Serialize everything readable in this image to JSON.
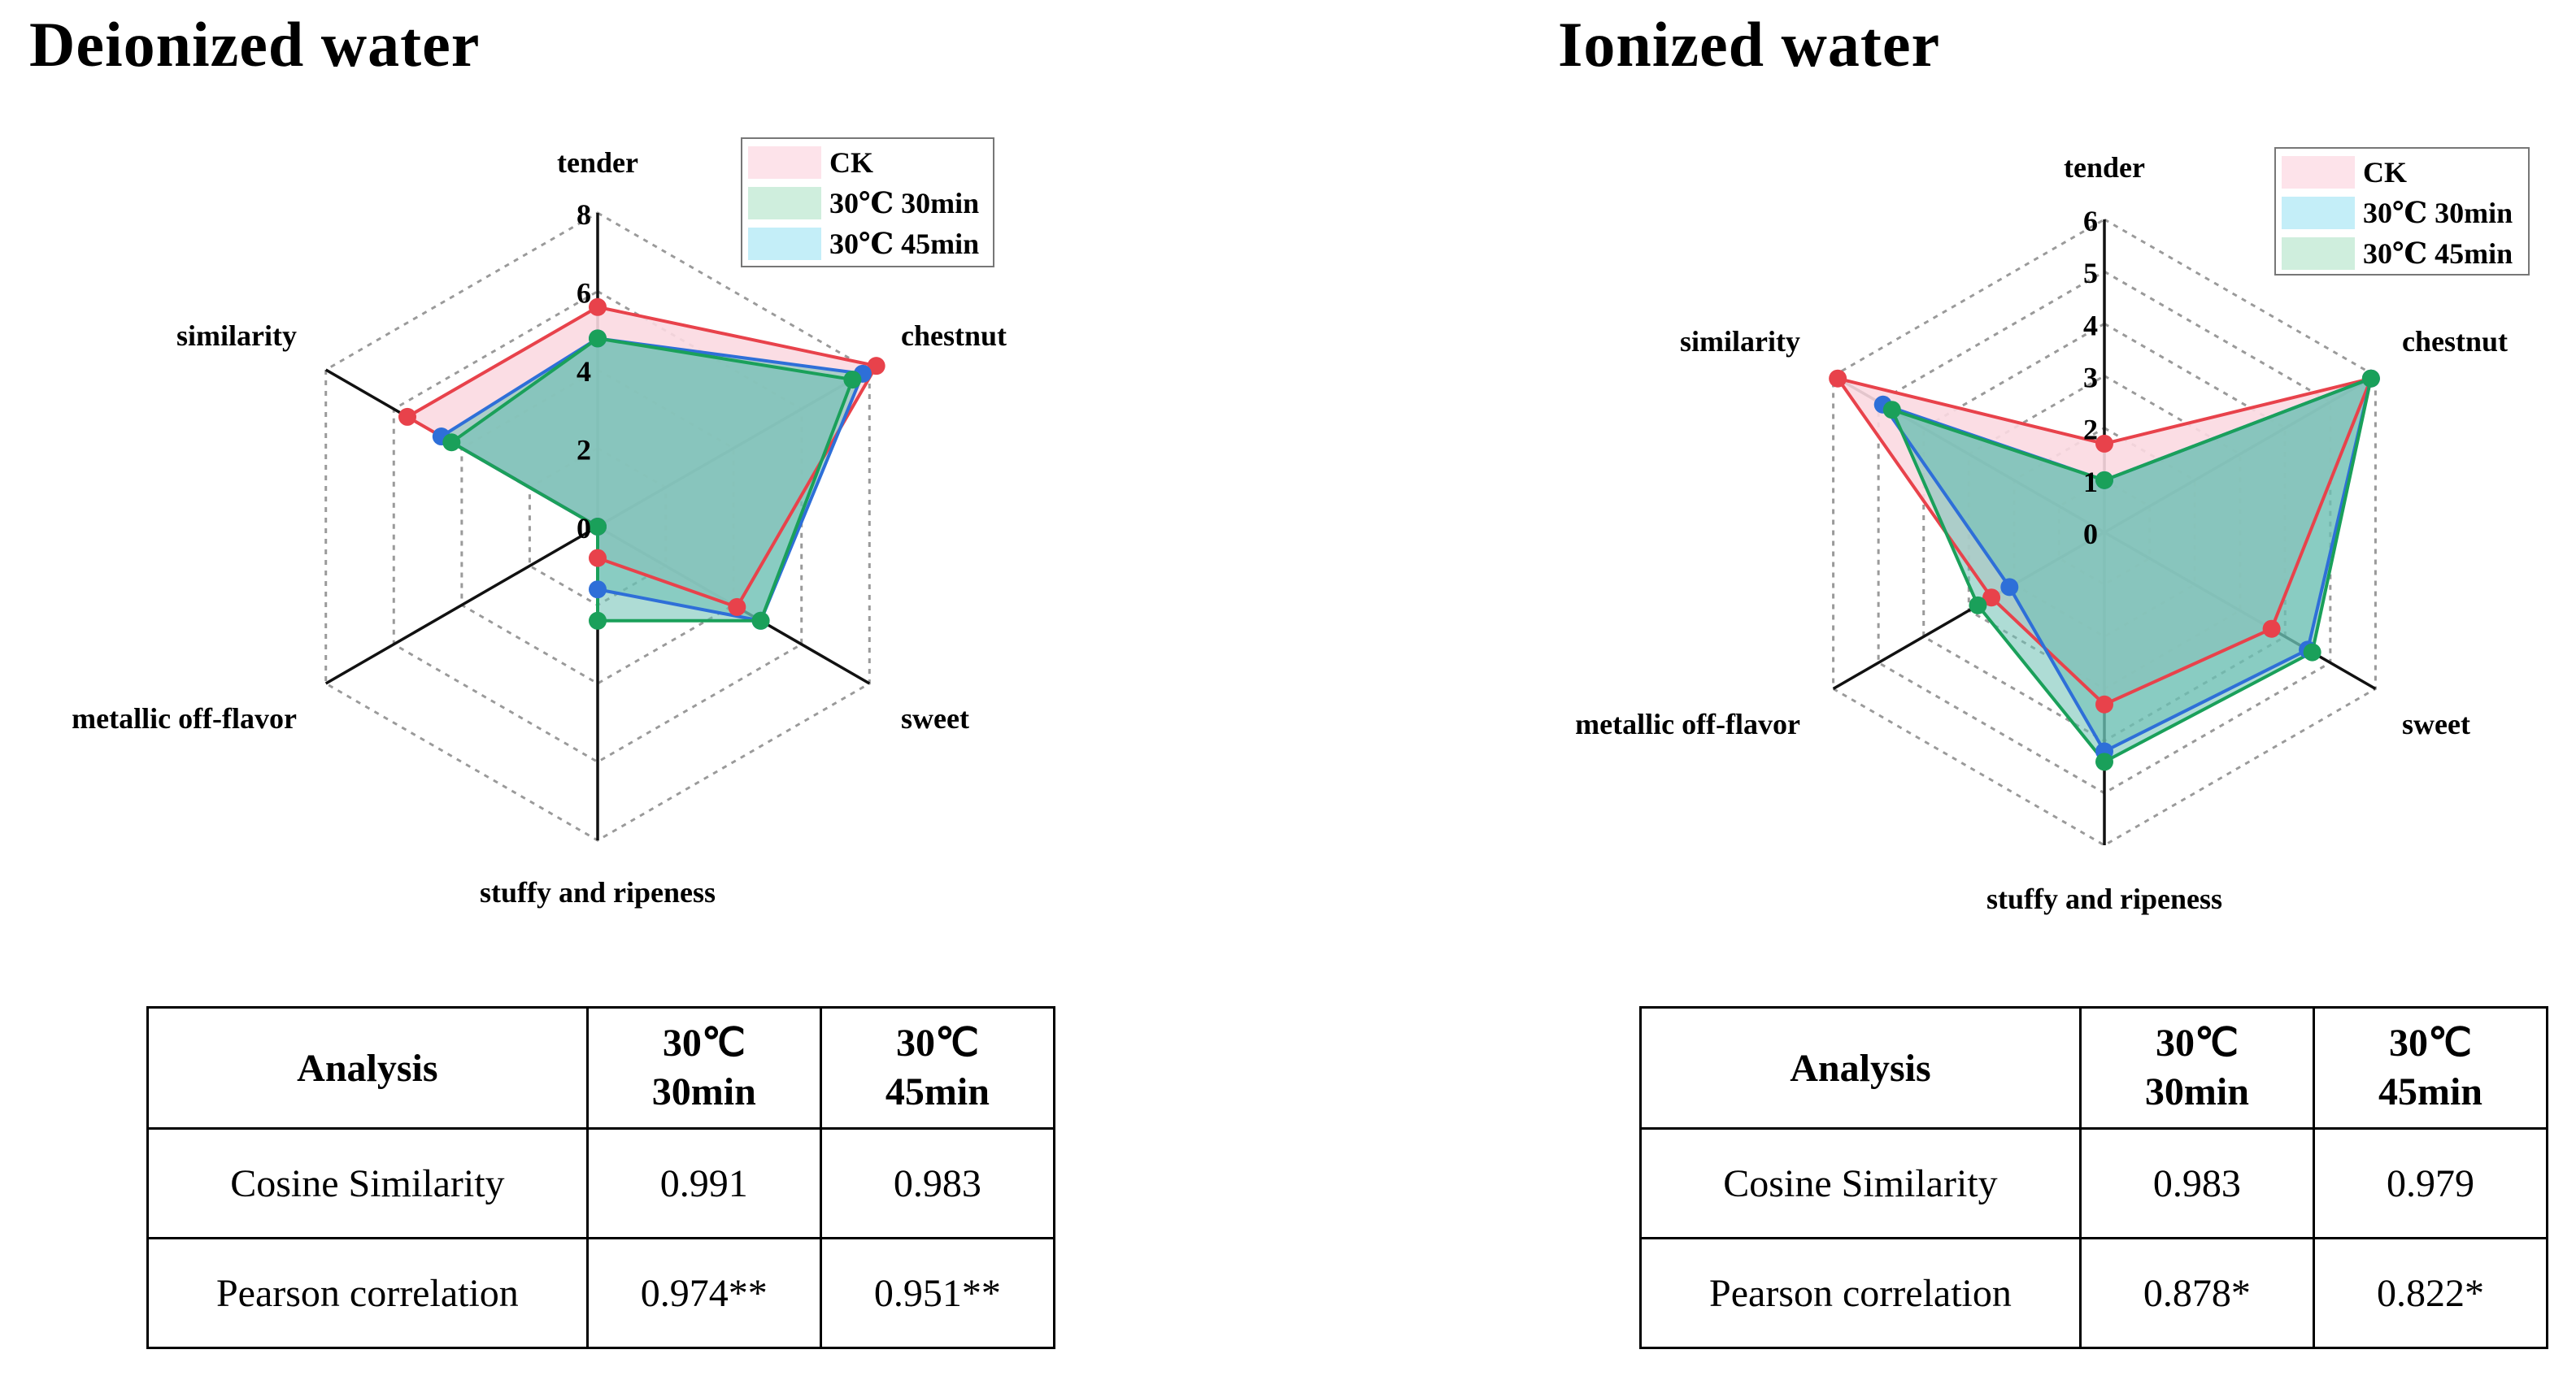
{
  "panels": [
    {
      "title": "Deionized water",
      "table": {
        "headers": [
          "Analysis",
          "30℃",
          "30min",
          "30℃",
          "45min"
        ],
        "rows": [
          [
            "Cosine Similarity",
            "0.991",
            "0.983"
          ],
          [
            "Pearson correlation",
            "0.974**",
            "0.951**"
          ]
        ]
      }
    },
    {
      "title": "Ionized water",
      "table": {
        "headers": [
          "Analysis",
          "30℃",
          "30min",
          "30℃",
          "45min"
        ],
        "rows": [
          [
            "Cosine Similarity",
            "0.983",
            "0.979"
          ],
          [
            "Pearson correlation",
            "0.878*",
            "0.822*"
          ]
        ]
      }
    }
  ],
  "chart_data": [
    {
      "type": "radar",
      "title": "Deionized water",
      "axes": [
        "tender",
        "chestnut",
        "sweet",
        "stuffy and ripeness",
        "metallic off-flavor",
        "similarity"
      ],
      "rmax": 8,
      "ticks": [
        0,
        2,
        4,
        6,
        8
      ],
      "series": [
        {
          "name": "CK",
          "line": "#e8424b",
          "fill": "#fbd9e1",
          "values": [
            5.6,
            8.2,
            4.1,
            0.8,
            0.0,
            5.6
          ]
        },
        {
          "name": "30℃ 30min",
          "line": "#2e6fd8",
          "fill": "#cfe7d9",
          "values": [
            4.8,
            7.8,
            4.8,
            1.6,
            0.0,
            4.6
          ]
        },
        {
          "name": "30℃ 45min",
          "line": "#1aa05a",
          "fill": "#bfe8f5",
          "values": [
            4.8,
            7.5,
            4.8,
            2.4,
            0.0,
            4.3
          ]
        }
      ],
      "legend": [
        {
          "label": "CK",
          "swatch": "#fde3ea"
        },
        {
          "label": "30℃ 30min",
          "swatch": "#cfeedd"
        },
        {
          "label": "30℃ 45min",
          "swatch": "#c4eef8"
        }
      ],
      "polygon_fill": "#6cbfb3",
      "legend_position": "top-right"
    },
    {
      "type": "radar",
      "title": "Ionized water",
      "axes": [
        "tender",
        "chestnut",
        "sweet",
        "stuffy and ripeness",
        "metallic off-flavor",
        "similarity"
      ],
      "rmax": 6,
      "ticks": [
        0,
        1,
        2,
        3,
        4,
        5,
        6
      ],
      "series": [
        {
          "name": "CK",
          "line": "#e8424b",
          "fill": "#fbd9e1",
          "values": [
            1.7,
            5.9,
            3.7,
            3.3,
            2.5,
            5.9
          ]
        },
        {
          "name": "30℃ 30min",
          "line": "#2e6fd8",
          "fill": "#c4eef8",
          "values": [
            1.0,
            5.9,
            4.5,
            4.2,
            2.1,
            4.9
          ]
        },
        {
          "name": "30℃ 45min",
          "line": "#1aa05a",
          "fill": "#cfeedd",
          "values": [
            1.0,
            5.9,
            4.6,
            4.4,
            2.8,
            4.7
          ]
        }
      ],
      "legend": [
        {
          "label": "CK",
          "swatch": "#fde3ea"
        },
        {
          "label": "30℃ 30min",
          "swatch": "#c4eef8"
        },
        {
          "label": "30℃ 45min",
          "swatch": "#cfeedd"
        }
      ],
      "polygon_fill": "#6cbfb3",
      "legend_position": "top-right"
    }
  ]
}
